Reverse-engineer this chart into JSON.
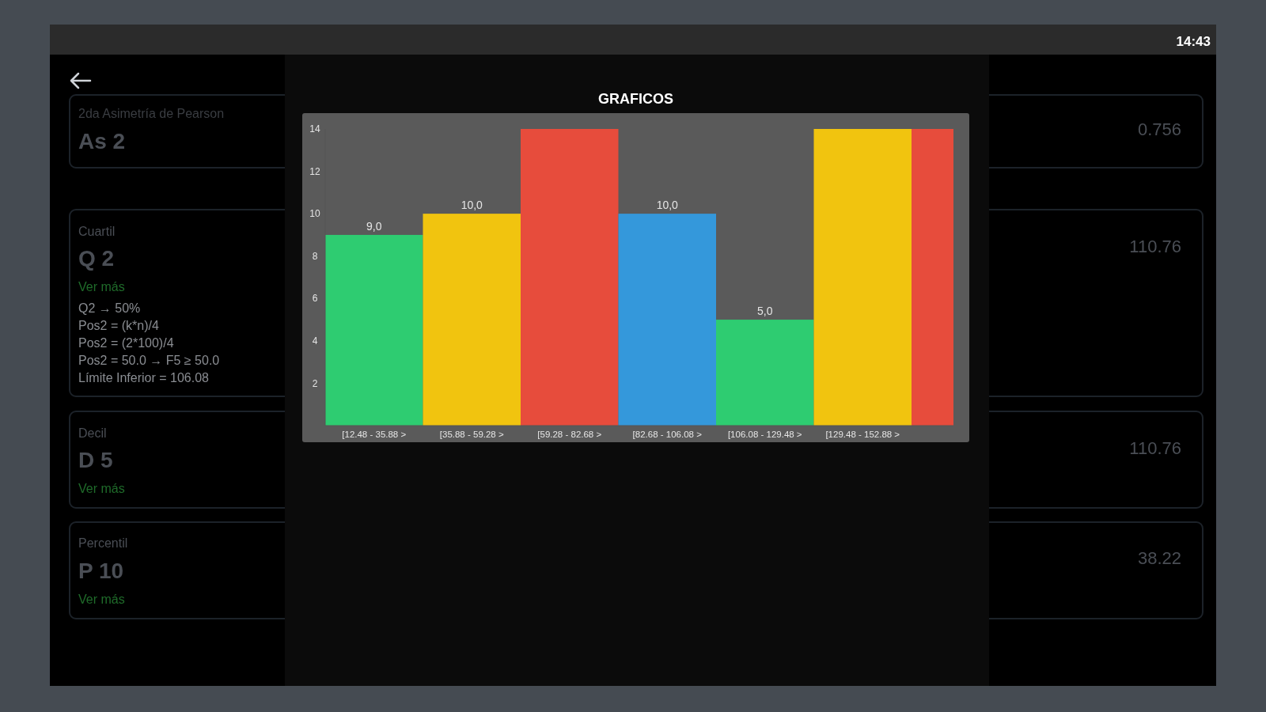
{
  "chart_data": [
    {
      "type": "bar",
      "title": "GRAFICOS",
      "categories": [
        "[12.48 - 35.88 >",
        "[35.88 - 59.28 >",
        "[59.28 - 82.68 >",
        "[82.68 - 106.08 >",
        "[106.08 - 129.48 >",
        "[129.48 - 152.88 >",
        null
      ],
      "values": [
        9,
        10,
        14,
        10,
        5,
        14,
        14
      ],
      "colors": [
        "#2ecc71",
        "#f1c40f",
        "#e74c3c",
        "#3498db",
        "#2ecc71",
        "#f1c40f",
        "#e74c3c"
      ],
      "value_labels": [
        "9,0",
        "10,0",
        null,
        "10,0",
        "5,0",
        null,
        null
      ],
      "ylim": [
        0,
        14
      ],
      "yticks": [
        2,
        4,
        6,
        8,
        10,
        12,
        14
      ],
      "grid": false
    },
    {
      "type": "other",
      "annotations": [
        "14:43",
        "2da Asimetría de Pearson",
        "As 2",
        "0.756",
        "Cuartil",
        "Q 2",
        "Ver más",
        "Q2 → 50%",
        "Pos2 = (k*n)/4",
        "Pos2 = (2*100)/4",
        "Pos2 = 50.0 → F5 ≥ 50.0",
        "Límite Inferior = 106.08",
        "110.76",
        "Decil",
        "D 5",
        "Ver más",
        "110.76",
        "Percentil",
        "P 10",
        "Ver más",
        "38.22"
      ]
    }
  ]
}
